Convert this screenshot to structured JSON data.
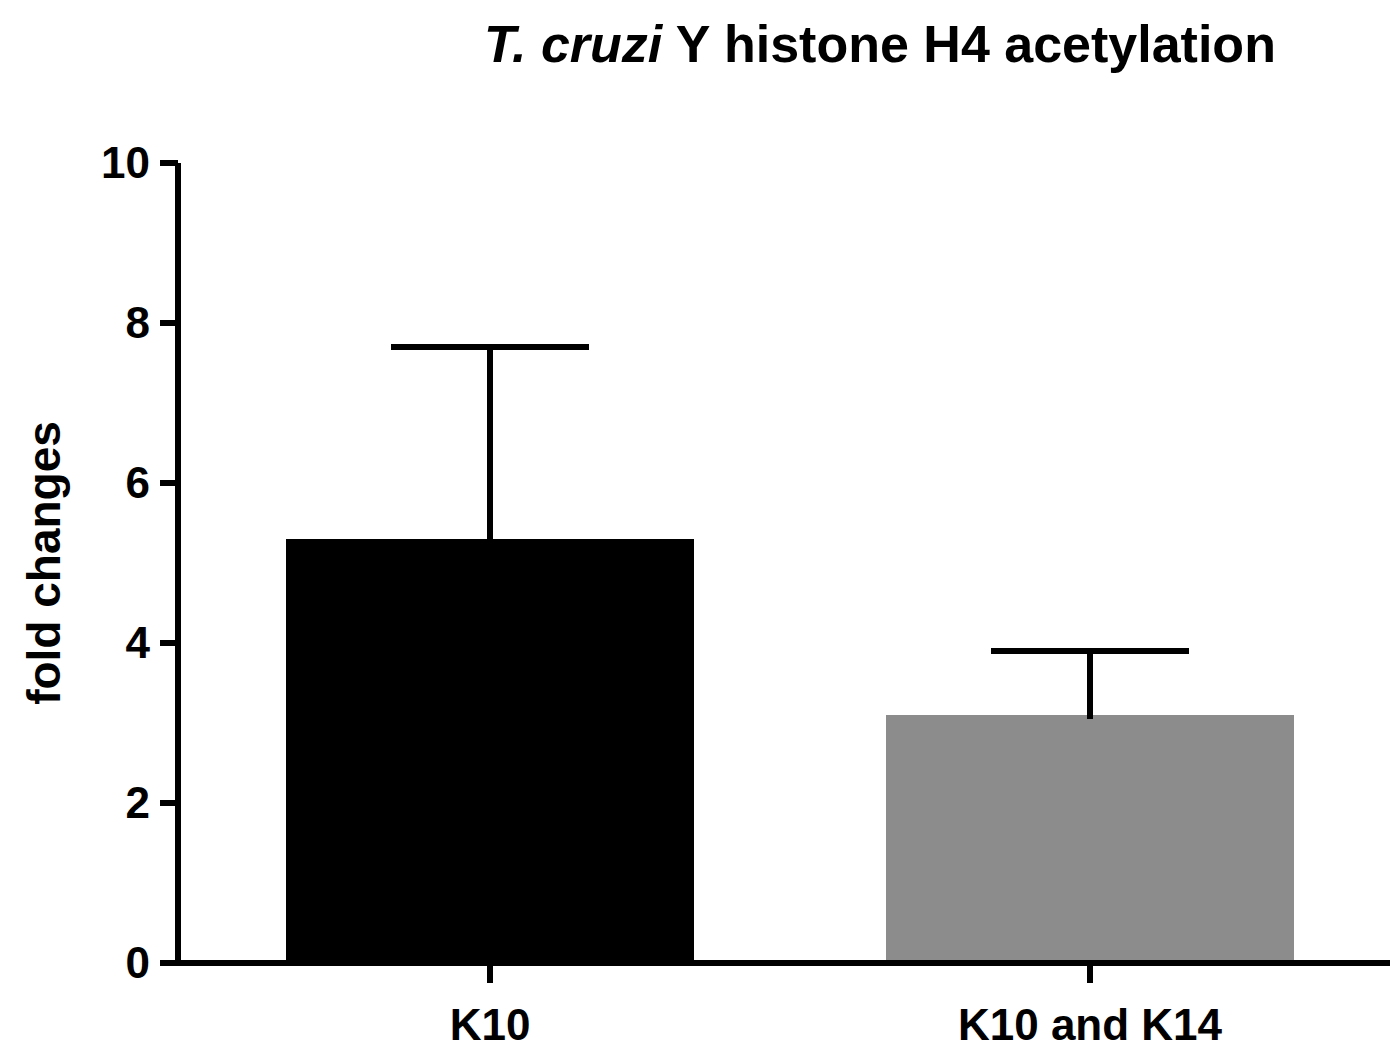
{
  "chart_data": {
    "type": "bar",
    "title": "T. cruzi Y histone H4 acetylation",
    "y_label": "fold changes",
    "categories": [
      "K10",
      "K10 and K14"
    ],
    "values": [
      5.3,
      3.1
    ],
    "errors": [
      2.4,
      0.8
    ],
    "colors": [
      "#000000",
      "#8c8c8c"
    ],
    "ylim": [
      0,
      10
    ],
    "yticks": [
      0,
      2,
      4,
      6,
      8,
      10
    ],
    "grid": false
  }
}
